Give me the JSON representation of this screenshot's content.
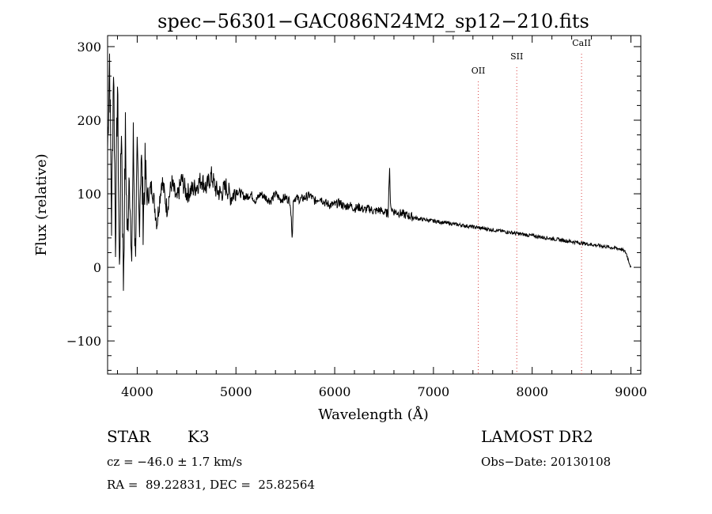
{
  "chart_data": {
    "type": "line",
    "title": "spec−56301−GAC086N24M2_sp12−210.fits",
    "xlabel": "Wavelength (Å)",
    "ylabel": "Flux (relative)",
    "xlim": [
      3700,
      9100
    ],
    "ylim": [
      -145,
      315
    ],
    "xticks": [
      4000,
      5000,
      6000,
      7000,
      8000,
      9000
    ],
    "xtick_labels": [
      "4000",
      "5000",
      "6000",
      "7000",
      "8000",
      "9000"
    ],
    "yticks": [
      -100,
      0,
      100,
      200,
      300
    ],
    "ytick_labels": [
      "−100",
      "0",
      "100",
      "200",
      "300"
    ],
    "grid": false,
    "series": [
      {
        "x": [
          3700,
          3720,
          3740,
          3760,
          3780,
          3800,
          3820,
          3840,
          3860,
          3880,
          3900,
          3920,
          3940,
          3960,
          3980,
          4000,
          4020,
          4040,
          4060,
          4080,
          4100,
          4150,
          4200,
          4250,
          4300,
          4350,
          4400,
          4450,
          4500,
          4550,
          4600,
          4650,
          4700,
          4750,
          4800,
          4850,
          4900,
          4950,
          5000,
          5050,
          5100,
          5150,
          5200,
          5250,
          5300,
          5350,
          5400,
          5450,
          5500,
          5550,
          5570,
          5580,
          5600,
          5650,
          5700,
          5750,
          5800,
          5850,
          5900,
          5950,
          6000,
          6050,
          6100,
          6150,
          6200,
          6250,
          6300,
          6350,
          6400,
          6450,
          6500,
          6540,
          6556,
          6563,
          6570,
          6600,
          6650,
          6700,
          6750,
          6800,
          6850,
          6900,
          6950,
          7000,
          7100,
          7200,
          7300,
          7400,
          7500,
          7600,
          7700,
          7800,
          7900,
          8000,
          8100,
          8200,
          8300,
          8400,
          8500,
          8600,
          8700,
          8800,
          8900,
          8950,
          9000
        ],
        "y": [
          160,
          290,
          60,
          280,
          40,
          250,
          -10,
          200,
          -20,
          180,
          30,
          150,
          -15,
          170,
          20,
          140,
          60,
          155,
          70,
          130,
          95,
          110,
          60,
          120,
          80,
          115,
          90,
          120,
          100,
          105,
          110,
          120,
          108,
          125,
          105,
          100,
          110,
          95,
          105,
          100,
          95,
          100,
          90,
          100,
          95,
          90,
          100,
          92,
          95,
          90,
          35,
          90,
          95,
          92,
          95,
          98,
          90,
          95,
          88,
          85,
          85,
          88,
          82,
          85,
          80,
          82,
          78,
          80,
          76,
          78,
          75,
          73,
          135,
          90,
          80,
          76,
          74,
          72,
          70,
          68,
          66,
          65,
          64,
          63,
          61,
          59,
          57,
          55,
          53,
          51,
          49,
          47,
          45,
          43,
          41,
          39,
          37,
          35,
          33,
          31,
          29,
          27,
          25,
          20,
          0
        ]
      }
    ],
    "annotations": [
      {
        "label": "OII",
        "x": 7454
      },
      {
        "label": "SII",
        "x": 7844
      },
      {
        "label": "CaII",
        "x": 8500
      }
    ]
  },
  "info": {
    "class": "STAR",
    "subclass": "K3",
    "cz": "cz = −46.0 ± 1.7 km/s",
    "coords": "RA =  89.22831, DEC =  25.82564",
    "survey": "LAMOST DR2",
    "obs_date": "Obs−Date: 20130108"
  },
  "colors": {
    "line": "#000000",
    "marker": "#d94040"
  }
}
